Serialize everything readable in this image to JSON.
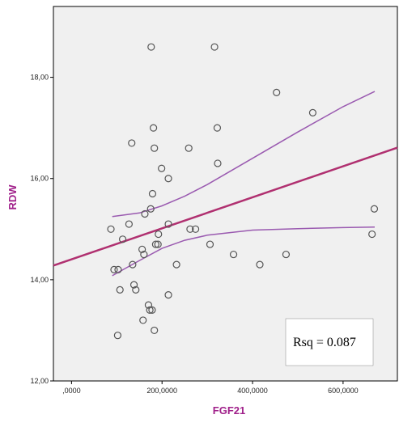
{
  "chart_data": {
    "type": "scatter",
    "xlabel": "FGF21",
    "ylabel": "RDW",
    "xlim": [
      -40000,
      720000
    ],
    "ylim": [
      12.0,
      19.4
    ],
    "x_ticks": [
      0,
      200000,
      400000,
      600000
    ],
    "x_tick_labels": [
      ",0000",
      "200,0000",
      "400,0000",
      "600,0000"
    ],
    "y_ticks": [
      12,
      14,
      16,
      18
    ],
    "y_tick_labels": [
      "12,00",
      "14,00",
      "16,00",
      "18,00"
    ],
    "annotation": "Rsq = 0.087",
    "grid": false,
    "background_color": "#f0f0f0",
    "point_color": "#555555",
    "fit_color": "#b03070",
    "ci_color": "#9a5ab0",
    "axis_title_color": "#a0208a",
    "points": [
      {
        "x": 176000,
        "y": 18.6
      },
      {
        "x": 316000,
        "y": 18.6
      },
      {
        "x": 453000,
        "y": 17.7
      },
      {
        "x": 533000,
        "y": 17.3
      },
      {
        "x": 181000,
        "y": 17.0
      },
      {
        "x": 322000,
        "y": 17.0
      },
      {
        "x": 133000,
        "y": 16.7
      },
      {
        "x": 183000,
        "y": 16.6
      },
      {
        "x": 259000,
        "y": 16.6
      },
      {
        "x": 323000,
        "y": 16.3
      },
      {
        "x": 199000,
        "y": 16.2
      },
      {
        "x": 214000,
        "y": 16.0
      },
      {
        "x": 179000,
        "y": 15.7
      },
      {
        "x": 175000,
        "y": 15.4
      },
      {
        "x": 669000,
        "y": 15.4
      },
      {
        "x": 162000,
        "y": 15.3
      },
      {
        "x": 127000,
        "y": 15.1
      },
      {
        "x": 214000,
        "y": 15.1
      },
      {
        "x": 87000,
        "y": 15.0
      },
      {
        "x": 262000,
        "y": 15.0
      },
      {
        "x": 274000,
        "y": 15.0
      },
      {
        "x": 192000,
        "y": 14.9
      },
      {
        "x": 664000,
        "y": 14.9
      },
      {
        "x": 113000,
        "y": 14.8
      },
      {
        "x": 186000,
        "y": 14.7
      },
      {
        "x": 191000,
        "y": 14.7
      },
      {
        "x": 306000,
        "y": 14.7
      },
      {
        "x": 156000,
        "y": 14.6
      },
      {
        "x": 160000,
        "y": 14.5
      },
      {
        "x": 358000,
        "y": 14.5
      },
      {
        "x": 474000,
        "y": 14.5
      },
      {
        "x": 135000,
        "y": 14.3
      },
      {
        "x": 232000,
        "y": 14.3
      },
      {
        "x": 416000,
        "y": 14.3
      },
      {
        "x": 94000,
        "y": 14.2
      },
      {
        "x": 103000,
        "y": 14.2
      },
      {
        "x": 138000,
        "y": 13.9
      },
      {
        "x": 107000,
        "y": 13.8
      },
      {
        "x": 142000,
        "y": 13.8
      },
      {
        "x": 214000,
        "y": 13.7
      },
      {
        "x": 170000,
        "y": 13.5
      },
      {
        "x": 173000,
        "y": 13.4
      },
      {
        "x": 178000,
        "y": 13.4
      },
      {
        "x": 158000,
        "y": 13.2
      },
      {
        "x": 183000,
        "y": 13.0
      },
      {
        "x": 102000,
        "y": 12.9
      }
    ],
    "fit_line": {
      "x": [
        -40000,
        720000
      ],
      "y": [
        14.28,
        16.61
      ]
    },
    "ci_upper": {
      "x": [
        90000,
        150000,
        200000,
        250000,
        300000,
        400000,
        500000,
        600000,
        670000
      ],
      "y": [
        15.25,
        15.32,
        15.46,
        15.65,
        15.88,
        16.4,
        16.92,
        17.42,
        17.72
      ]
    },
    "ci_lower": {
      "x": [
        90000,
        150000,
        200000,
        250000,
        300000,
        400000,
        500000,
        600000,
        670000
      ],
      "y": [
        14.08,
        14.38,
        14.62,
        14.78,
        14.88,
        14.98,
        15.01,
        15.03,
        15.04
      ]
    }
  }
}
